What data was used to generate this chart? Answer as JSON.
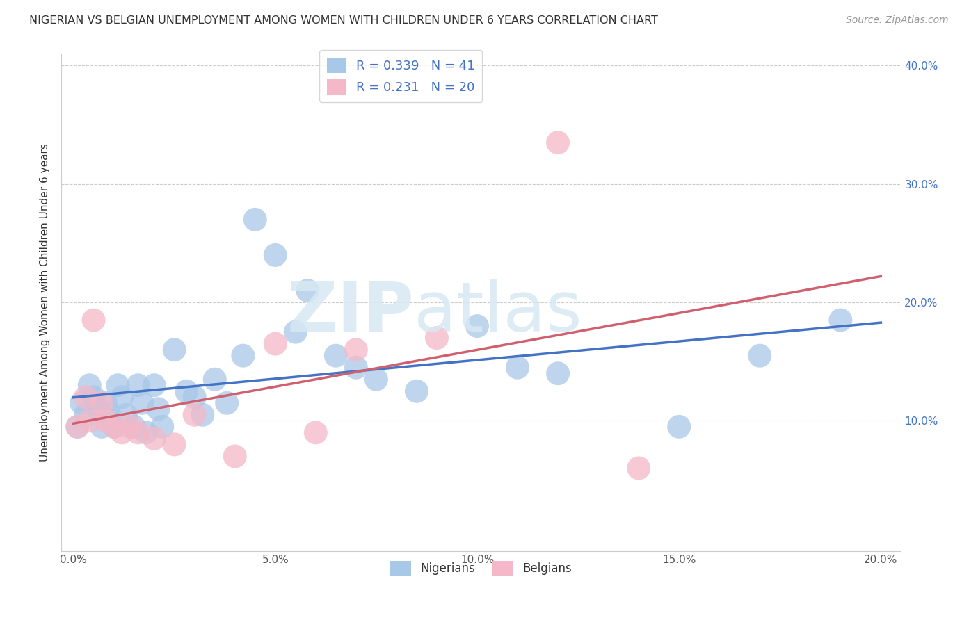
{
  "title": "NIGERIAN VS BELGIAN UNEMPLOYMENT AMONG WOMEN WITH CHILDREN UNDER 6 YEARS CORRELATION CHART",
  "source": "Source: ZipAtlas.com",
  "ylabel": "Unemployment Among Women with Children Under 6 years",
  "xlim": [
    -0.003,
    0.205
  ],
  "ylim": [
    -0.01,
    0.41
  ],
  "xticks": [
    0.0,
    0.05,
    0.1,
    0.15,
    0.2
  ],
  "yticks": [
    0.0,
    0.1,
    0.2,
    0.3,
    0.4
  ],
  "xticklabels": [
    "0.0%",
    "5.0%",
    "10.0%",
    "15.0%",
    "20.0%"
  ],
  "left_yticklabels": [
    "",
    "",
    "",
    "",
    ""
  ],
  "right_yticklabels": [
    "",
    "10.0%",
    "20.0%",
    "30.0%",
    "40.0%"
  ],
  "nigerian_R": 0.339,
  "nigerian_N": 41,
  "belgian_R": 0.231,
  "belgian_N": 20,
  "nigerian_color": "#A8C8E8",
  "belgian_color": "#F4B8C8",
  "nigerian_line_color": "#4472C4",
  "belgian_line_color": "#D06070",
  "watermark_zip": "ZIP",
  "watermark_atlas": "atlas",
  "nigerian_x": [
    0.001,
    0.002,
    0.003,
    0.004,
    0.005,
    0.006,
    0.007,
    0.008,
    0.009,
    0.01,
    0.011,
    0.012,
    0.013,
    0.015,
    0.016,
    0.017,
    0.018,
    0.02,
    0.021,
    0.022,
    0.025,
    0.028,
    0.03,
    0.032,
    0.035,
    0.038,
    0.042,
    0.045,
    0.05,
    0.055,
    0.058,
    0.065,
    0.07,
    0.075,
    0.085,
    0.1,
    0.11,
    0.12,
    0.15,
    0.17,
    0.19
  ],
  "nigerian_y": [
    0.095,
    0.115,
    0.105,
    0.13,
    0.12,
    0.11,
    0.095,
    0.115,
    0.105,
    0.095,
    0.13,
    0.12,
    0.105,
    0.095,
    0.13,
    0.115,
    0.09,
    0.13,
    0.11,
    0.095,
    0.16,
    0.125,
    0.12,
    0.105,
    0.135,
    0.115,
    0.155,
    0.27,
    0.24,
    0.175,
    0.21,
    0.155,
    0.145,
    0.135,
    0.125,
    0.18,
    0.145,
    0.14,
    0.095,
    0.155,
    0.185
  ],
  "belgian_x": [
    0.001,
    0.003,
    0.004,
    0.005,
    0.007,
    0.008,
    0.01,
    0.012,
    0.014,
    0.016,
    0.02,
    0.025,
    0.03,
    0.04,
    0.05,
    0.06,
    0.07,
    0.09,
    0.12,
    0.14
  ],
  "belgian_y": [
    0.095,
    0.12,
    0.1,
    0.185,
    0.115,
    0.1,
    0.095,
    0.09,
    0.095,
    0.09,
    0.085,
    0.08,
    0.105,
    0.07,
    0.165,
    0.09,
    0.16,
    0.17,
    0.335,
    0.06
  ]
}
